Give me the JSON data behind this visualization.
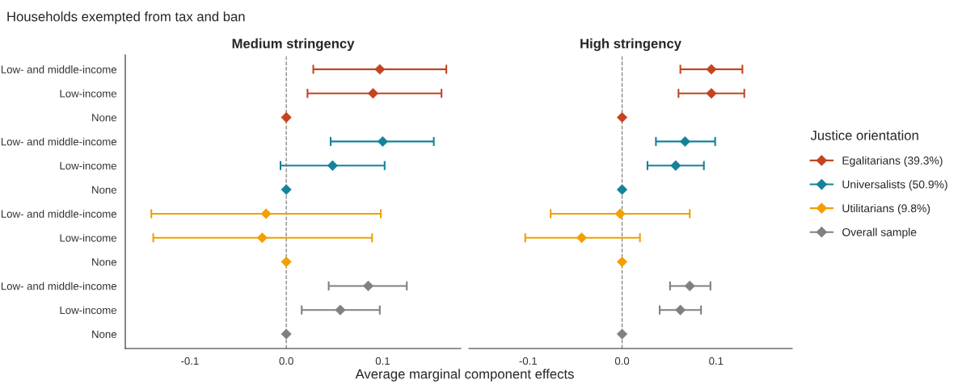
{
  "chart_data": [
    {
      "type": "scatter",
      "orientation": "horizontal",
      "title": "Medium stringency",
      "annotations": [
        "Households exempted from tax and ban"
      ],
      "xlabel": "Average marginal component effects",
      "categories": [
        "Low- and middle-income",
        "Low-income",
        "None",
        "Low- and middle-income",
        "Low-income",
        "None",
        "Low- and middle-income",
        "Low-income",
        "None",
        "Low- and middle-income",
        "Low-income",
        "None"
      ],
      "series": [
        {
          "name": "Egalitarians (39.3%)",
          "color": "#c4441f",
          "values": [
            0.097,
            0.09,
            0,
            null,
            null,
            null,
            null,
            null,
            null,
            null,
            null,
            null
          ],
          "errors": [
            [
              0.028,
              0.166
            ],
            [
              0.022,
              0.161
            ],
            null,
            null,
            null,
            null,
            null,
            null,
            null,
            null,
            null,
            null
          ]
        },
        {
          "name": "Universalists (50.9%)",
          "color": "#14829a",
          "values": [
            null,
            null,
            null,
            0.1,
            0.048,
            0,
            null,
            null,
            null,
            null,
            null,
            null
          ],
          "errors": [
            null,
            null,
            null,
            [
              0.046,
              0.153
            ],
            [
              -0.006,
              0.102
            ],
            null,
            null,
            null,
            null,
            null,
            null,
            null
          ]
        },
        {
          "name": "Utilitarians (9.8%)",
          "color": "#f0a000",
          "values": [
            null,
            null,
            null,
            null,
            null,
            null,
            -0.021,
            -0.025,
            0,
            null,
            null,
            null
          ],
          "errors": [
            null,
            null,
            null,
            null,
            null,
            null,
            [
              -0.14,
              0.098
            ],
            [
              -0.138,
              0.089
            ],
            null,
            null,
            null,
            null
          ]
        },
        {
          "name": "Overall sample",
          "color": "#808080",
          "values": [
            null,
            null,
            null,
            null,
            null,
            null,
            null,
            null,
            null,
            0.085,
            0.056,
            0
          ],
          "errors": [
            null,
            null,
            null,
            null,
            null,
            null,
            null,
            null,
            null,
            [
              0.044,
              0.125
            ],
            [
              0.016,
              0.097
            ],
            null
          ]
        }
      ],
      "xlim": [
        -0.167,
        0.181
      ],
      "xticks": [
        {
          "value": -0.1,
          "label": "-0.1"
        },
        {
          "value": 0,
          "label": "0.0"
        },
        {
          "value": 0.1,
          "label": "0.1"
        }
      ],
      "marker": "diamond",
      "ref_lines": [
        {
          "axis": "x",
          "value": 0,
          "line_style": "dashed",
          "color": "#808080"
        }
      ],
      "legend": "right",
      "legend_title": "Justice orientation"
    },
    {
      "type": "scatter",
      "orientation": "horizontal",
      "title": "High stringency",
      "categories": [
        null,
        null,
        null,
        null,
        null,
        null,
        null,
        null,
        null,
        null,
        null,
        null
      ],
      "series": [
        {
          "color": "#c4441f",
          "values": [
            0.095,
            0.095,
            0,
            null,
            null,
            null,
            null,
            null,
            null,
            null,
            null,
            null
          ],
          "errors": [
            [
              0.062,
              0.128
            ],
            [
              0.06,
              0.13
            ],
            null,
            null,
            null,
            null,
            null,
            null,
            null,
            null,
            null,
            null
          ]
        },
        {
          "color": "#14829a",
          "values": [
            null,
            null,
            null,
            0.067,
            0.057,
            0,
            null,
            null,
            null,
            null,
            null,
            null
          ],
          "errors": [
            null,
            null,
            null,
            [
              0.036,
              0.099
            ],
            [
              0.027,
              0.087
            ],
            null,
            null,
            null,
            null,
            null,
            null,
            null
          ]
        },
        {
          "color": "#f0a000",
          "values": [
            null,
            null,
            null,
            null,
            null,
            null,
            -0.002,
            -0.043,
            0,
            null,
            null,
            null
          ],
          "errors": [
            null,
            null,
            null,
            null,
            null,
            null,
            [
              -0.076,
              0.072
            ],
            [
              -0.103,
              0.019
            ],
            null,
            null,
            null,
            null
          ]
        },
        {
          "color": "#808080",
          "values": [
            null,
            null,
            null,
            null,
            null,
            null,
            null,
            null,
            null,
            0.072,
            0.062,
            0
          ],
          "errors": [
            null,
            null,
            null,
            null,
            null,
            null,
            null,
            null,
            null,
            [
              0.051,
              0.094
            ],
            [
              0.04,
              0.084
            ],
            null
          ]
        }
      ],
      "xlim": [
        -0.163,
        0.181
      ],
      "xticks": [
        {
          "value": -0.1,
          "label": "-0.1"
        },
        {
          "value": 0,
          "label": "0.0"
        },
        {
          "value": 0.1,
          "label": "0.1"
        }
      ],
      "tick_labels": "x",
      "marker": "diamond",
      "ref_lines": [
        {
          "axis": "x",
          "value": 0,
          "line_style": "dashed",
          "color": "#808080"
        }
      ]
    }
  ]
}
